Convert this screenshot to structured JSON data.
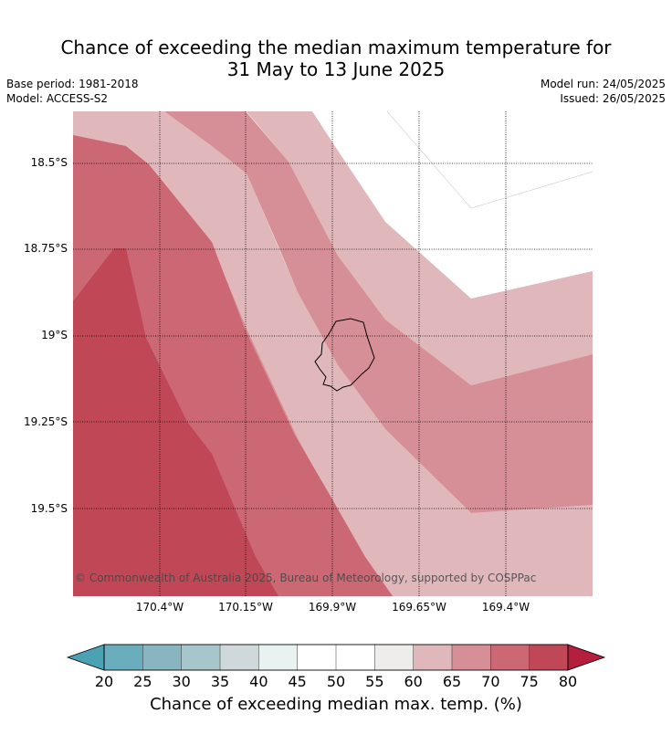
{
  "title_line1": "Chance of exceeding the median maximum temperature for",
  "title_line2": "31 May to 13 June 2025",
  "base_period": "Base period: 1981-2018",
  "model": "Model: ACCESS-S2",
  "model_run": "Model run: 24/05/2025",
  "issued": "Issued: 26/05/2025",
  "copyright": "© Commonwealth of Australia 2025, Bureau of Meteorology, supported by COSPPac",
  "lat_labels": [
    "18.5°S",
    "18.75°S",
    "19°S",
    "19.25°S",
    "19.5°S"
  ],
  "lon_labels": [
    "170.4°W",
    "170.15°W",
    "169.9°W",
    "169.65°W",
    "169.4°W"
  ],
  "colorbar": {
    "title": "Chance of exceeding median max. temp. (%)",
    "ticks": [
      "20",
      "25",
      "30",
      "35",
      "40",
      "45",
      "50",
      "55",
      "60",
      "65",
      "70",
      "75",
      "80"
    ],
    "colors": [
      "#6aaebe",
      "#89b5c1",
      "#a7c6cb",
      "#cfd9dc",
      "#e9f1f1",
      "#ffffff",
      "#ffffff",
      "#eeedec",
      "#e0b8bc",
      "#d68f96",
      "#cb6873",
      "#c04856"
    ],
    "under_color": "#4ca2b5",
    "over_color": "#b51e3c"
  },
  "map_colors": {
    "c55_60": "#eeedec",
    "c60_65": "#e0b8bc",
    "c65_70": "#d68f96",
    "c70_75": "#cb6873",
    "c75_80": "#c04856"
  }
}
